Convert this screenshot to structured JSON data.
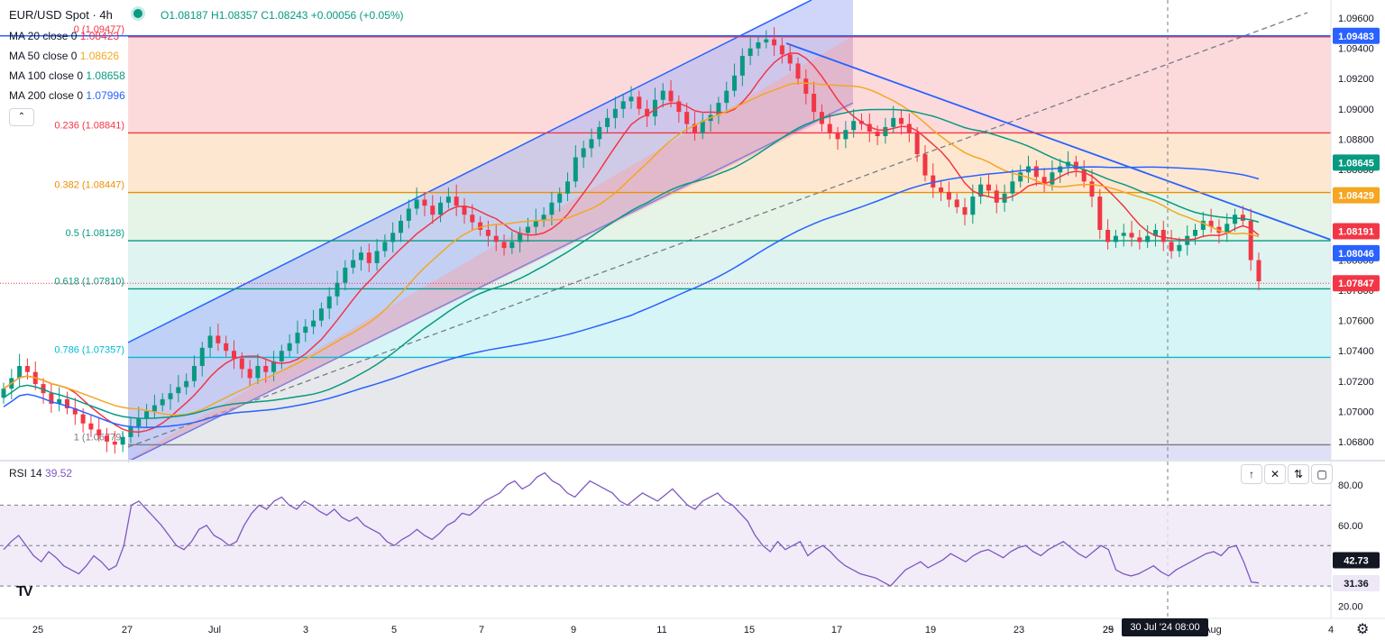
{
  "header": {
    "symbol": "EUR/USD Spot · 4h",
    "ohlc": "O1.08187 H1.08357 C1.08243 +0.00056 (+0.05%)"
  },
  "indicators": [
    {
      "label": "MA 20 close 0",
      "value": "1.08423",
      "color": "#f23645"
    },
    {
      "label": "MA 50 close 0",
      "value": "1.08626",
      "color": "#f5a623"
    },
    {
      "label": "MA 100 close 0",
      "value": "1.08658",
      "color": "#089981"
    },
    {
      "label": "MA 200 close 0",
      "value": "1.07996",
      "color": "#2962ff"
    }
  ],
  "rsi": {
    "label": "RSI 14",
    "value": "39.52",
    "ticks": [
      "80.00",
      "60.00",
      "20.00"
    ],
    "tags": [
      "42.73",
      "31.36"
    ],
    "levels": [
      70,
      50,
      30
    ],
    "series": [
      48,
      52,
      55,
      50,
      45,
      42,
      47,
      44,
      40,
      38,
      36,
      40,
      45,
      42,
      38,
      40,
      50,
      70,
      72,
      68,
      64,
      60,
      55,
      50,
      48,
      52,
      58,
      60,
      55,
      53,
      50,
      52,
      60,
      66,
      70,
      68,
      72,
      74,
      70,
      68,
      72,
      70,
      67,
      65,
      68,
      64,
      62,
      64,
      60,
      58,
      56,
      52,
      50,
      53,
      55,
      58,
      55,
      53,
      56,
      60,
      62,
      66,
      65,
      68,
      72,
      74,
      76,
      80,
      82,
      78,
      80,
      84,
      86,
      82,
      80,
      76,
      74,
      78,
      82,
      80,
      78,
      76,
      72,
      70,
      73,
      76,
      74,
      72,
      75,
      78,
      74,
      70,
      68,
      72,
      74,
      76,
      72,
      70,
      66,
      62,
      55,
      50,
      47,
      52,
      48,
      50,
      52,
      45,
      48,
      50,
      47,
      43,
      40,
      38,
      36,
      35,
      34,
      32,
      30,
      34,
      38,
      40,
      42,
      39,
      41,
      43,
      46,
      44,
      42,
      45,
      47,
      48,
      46,
      44,
      47,
      49,
      50,
      47,
      45,
      48,
      50,
      52,
      49,
      46,
      44,
      47,
      50,
      48,
      38,
      36,
      35,
      36,
      38,
      40,
      37,
      35,
      38,
      40,
      42,
      44,
      46,
      47,
      45,
      49,
      50,
      42,
      32,
      31.5
    ]
  },
  "fib": [
    {
      "label": "0 (1.09477)",
      "level": 1.09477,
      "color": "#f23645"
    },
    {
      "label": "0.236 (1.08841)",
      "level": 1.08841,
      "color": "#f23645"
    },
    {
      "label": "0.382 (1.08447)",
      "level": 1.08447,
      "color": "#ef8f00"
    },
    {
      "label": "0.5 (1.08128)",
      "level": 1.08128,
      "color": "#089981"
    },
    {
      "label": "0.618 (1.07810)",
      "level": 1.0781,
      "color": "#089981"
    },
    {
      "label": "0.786 (1.07357)",
      "level": 1.07357,
      "color": "#00bcd4"
    },
    {
      "label": "1 (1.06779)",
      "level": 1.06779,
      "color": "#787b86"
    }
  ],
  "price_axis": {
    "ticks": [
      "1.09600",
      "1.09400",
      "1.09200",
      "1.09000",
      "1.08800",
      "1.08600",
      "1.08400",
      "1.08200",
      "1.08000",
      "1.07800",
      "1.07600",
      "1.07400",
      "1.07200",
      "1.07000",
      "1.06800"
    ],
    "ylim": [
      1.0668,
      1.0972
    ]
  },
  "price_tags": [
    {
      "value": "1.09483",
      "color": "#2962ff"
    },
    {
      "value": "1.08645",
      "color": "#089981"
    },
    {
      "value": "1.08429",
      "color": "#f5a623"
    },
    {
      "value": "1.08191",
      "color": "#f23645"
    },
    {
      "value": "1.08046",
      "color": "#2962ff"
    },
    {
      "value": "1.07847",
      "color": "#f23645"
    }
  ],
  "time_axis": {
    "ticks": [
      "25",
      "27",
      "Jul",
      "3",
      "5",
      "7",
      "9",
      "11",
      "15",
      "17",
      "19",
      "23",
      "25",
      "29",
      "Aug",
      "4"
    ],
    "crosshair": "30 Jul '24  08:00"
  },
  "chart_data": {
    "type": "candlestick",
    "symbol": "EUR/USD Spot",
    "interval": "4h",
    "close": [
      1.0715,
      1.0722,
      1.073,
      1.0726,
      1.0718,
      1.0712,
      1.0705,
      1.0708,
      1.0702,
      1.0698,
      1.0692,
      1.0688,
      1.0684,
      1.068,
      1.0678,
      1.0683,
      1.069,
      1.0695,
      1.07,
      1.0704,
      1.0708,
      1.0712,
      1.0716,
      1.072,
      1.073,
      1.0742,
      1.075,
      1.0745,
      1.074,
      1.0735,
      1.0728,
      1.0722,
      1.073,
      1.0726,
      1.0733,
      1.074,
      1.0745,
      1.0752,
      1.0756,
      1.076,
      1.0768,
      1.0776,
      1.0785,
      1.0795,
      1.08,
      1.0805,
      1.0798,
      1.0806,
      1.0812,
      1.0818,
      1.0826,
      1.0834,
      1.084,
      1.0836,
      1.083,
      1.0838,
      1.0842,
      1.0836,
      1.083,
      1.0825,
      1.082,
      1.0816,
      1.0812,
      1.0808,
      1.0812,
      1.0818,
      1.0822,
      1.0826,
      1.083,
      1.0838,
      1.0844,
      1.0852,
      1.0868,
      1.0874,
      1.088,
      1.0888,
      1.0894,
      1.09,
      1.0905,
      1.0908,
      1.09,
      1.0895,
      1.0906,
      1.0912,
      1.0905,
      1.0898,
      1.089,
      1.0884,
      1.0892,
      1.0896,
      1.0904,
      1.0912,
      1.0922,
      1.0935,
      1.094,
      1.0944,
      1.0946,
      1.0942,
      1.0936,
      1.093,
      1.092,
      1.091,
      1.0898,
      1.089,
      1.0884,
      1.088,
      1.0886,
      1.0892,
      1.089,
      1.0885,
      1.0882,
      1.0888,
      1.0894,
      1.089,
      1.0884,
      1.087,
      1.0856,
      1.0848,
      1.0845,
      1.084,
      1.0835,
      1.083,
      1.0842,
      1.085,
      1.0846,
      1.0838,
      1.0844,
      1.0852,
      1.0858,
      1.0862,
      1.0855,
      1.085,
      1.0858,
      1.0862,
      1.0865,
      1.086,
      1.0852,
      1.0842,
      1.082,
      1.0812,
      1.0816,
      1.0818,
      1.0815,
      1.0812,
      1.0816,
      1.082,
      1.0812,
      1.0806,
      1.081,
      1.0816,
      1.082,
      1.0826,
      1.0822,
      1.0818,
      1.0824,
      1.083,
      1.0826,
      1.08,
      1.0786
    ],
    "ma20_last": 1.08423,
    "ma50_last": 1.08626,
    "ma100_last": 1.08658,
    "ma200_last": 1.07996,
    "last_price": 1.07847,
    "ylim": [
      1.0668,
      1.0972
    ]
  }
}
